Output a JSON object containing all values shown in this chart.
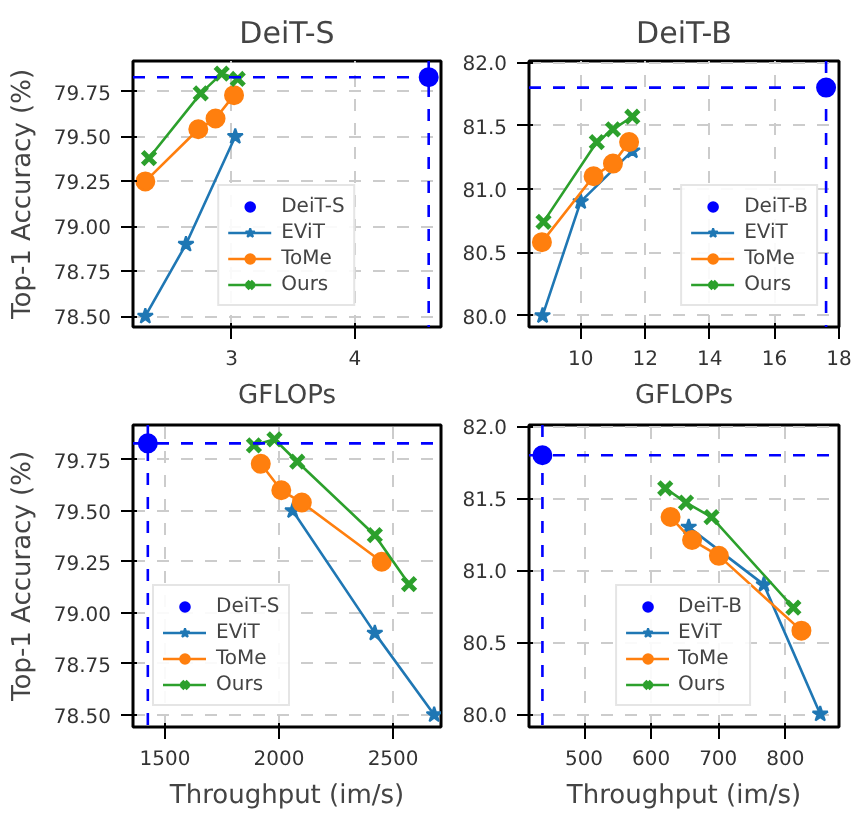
{
  "chart_data": [
    {
      "type": "line",
      "title": "DeiT-S",
      "xlabel": "GFLOPs",
      "ylabel": "Top-1 Accuracy (%)",
      "xlim": [
        2.2,
        4.7
      ],
      "ylim": [
        78.44,
        79.92
      ],
      "xticks": [
        3,
        4
      ],
      "yticks": [
        {
          "value": 78.5,
          "label": "78.50"
        },
        {
          "value": 78.75,
          "label": "78.75"
        },
        {
          "value": 79.0,
          "label": "79.00"
        },
        {
          "value": 79.25,
          "label": "79.25"
        },
        {
          "value": 79.5,
          "label": "79.50"
        },
        {
          "value": 79.75,
          "label": "79.75"
        }
      ],
      "grid": true,
      "legend": "bottom",
      "ref_lines": [
        {
          "axis": "x",
          "value": 4.6,
          "color": "#0000ff",
          "line_style": "dashed"
        },
        {
          "axis": "y",
          "value": 79.83,
          "color": "#0000ff",
          "line_style": "dashed"
        }
      ],
      "series": [
        {
          "name": "DeiT-S",
          "type": "scatter",
          "marker": "circle",
          "color": "#0000ff",
          "x": [
            4.6
          ],
          "values": [
            79.83
          ]
        },
        {
          "name": "EViT",
          "marker": "star",
          "color": "#1f77b4",
          "x": [
            2.3,
            2.63,
            3.03
          ],
          "values": [
            78.5,
            78.9,
            79.5
          ]
        },
        {
          "name": "ToMe",
          "marker": "circle",
          "color": "#ff7f0e",
          "x": [
            2.3,
            2.73,
            2.87,
            3.02
          ],
          "values": [
            79.25,
            79.54,
            79.6,
            79.73
          ]
        },
        {
          "name": "Ours",
          "marker": "cross",
          "color": "#2ca02c",
          "x": [
            2.33,
            2.75,
            2.92,
            3.05
          ],
          "values": [
            79.38,
            79.74,
            79.85,
            79.82
          ]
        }
      ]
    },
    {
      "type": "line",
      "title": "DeiT-B",
      "xlabel": "GFLOPs",
      "xlim": [
        8.4,
        18
      ],
      "ylim": [
        79.91,
        82.01
      ],
      "xticks": [
        10,
        12,
        14,
        16,
        18
      ],
      "yticks": [
        {
          "value": 80,
          "label": "80.0"
        },
        {
          "value": 80.5,
          "label": "80.5"
        },
        {
          "value": 81,
          "label": "81.0"
        },
        {
          "value": 81.5,
          "label": "81.5"
        },
        {
          "value": 82,
          "label": "82.0"
        }
      ],
      "grid": true,
      "legend": "bottom right",
      "ref_lines": [
        {
          "axis": "x",
          "value": 17.6,
          "color": "#0000ff",
          "line_style": "dashed"
        },
        {
          "axis": "y",
          "value": 81.8,
          "color": "#0000ff",
          "line_style": "dashed"
        }
      ],
      "series": [
        {
          "name": "DeiT-B",
          "type": "scatter",
          "marker": "circle",
          "color": "#0000ff",
          "x": [
            17.6
          ],
          "values": [
            81.8
          ]
        },
        {
          "name": "EViT",
          "marker": "star",
          "color": "#1f77b4",
          "x": [
            8.82,
            10.0,
            11.6
          ],
          "values": [
            80.0,
            80.9,
            81.3
          ]
        },
        {
          "name": "ToMe",
          "marker": "circle",
          "color": "#ff7f0e",
          "x": [
            8.8,
            10.4,
            11.0,
            11.5
          ],
          "values": [
            80.58,
            81.1,
            81.2,
            81.37
          ]
        },
        {
          "name": "Ours",
          "marker": "cross",
          "color": "#2ca02c",
          "x": [
            8.85,
            10.5,
            11.0,
            11.6
          ],
          "values": [
            80.74,
            81.37,
            81.47,
            81.57
          ]
        }
      ]
    },
    {
      "type": "line",
      "xlabel": "Throughput (im/s)",
      "ylabel": "Top-1 Accuracy (%)",
      "xlim": [
        1360,
        2710
      ],
      "ylim": [
        78.44,
        79.92
      ],
      "xticks": [
        1500,
        2000,
        2500
      ],
      "yticks": [
        {
          "value": 78.5,
          "label": "78.50"
        },
        {
          "value": 78.75,
          "label": "78.75"
        },
        {
          "value": 79.0,
          "label": "79.00"
        },
        {
          "value": 79.25,
          "label": "79.25"
        },
        {
          "value": 79.5,
          "label": "79.50"
        },
        {
          "value": 79.75,
          "label": "79.75"
        }
      ],
      "grid": true,
      "legend": "bottom left",
      "ref_lines": [
        {
          "axis": "x",
          "value": 1425,
          "color": "#0000ff",
          "line_style": "dashed"
        },
        {
          "axis": "y",
          "value": 79.83,
          "color": "#0000ff",
          "line_style": "dashed"
        }
      ],
      "series": [
        {
          "name": "DeiT-S",
          "type": "scatter",
          "marker": "circle",
          "color": "#0000ff",
          "x": [
            1425
          ],
          "values": [
            79.83
          ]
        },
        {
          "name": "EViT",
          "marker": "star",
          "color": "#1f77b4",
          "x": [
            2060,
            2420,
            2680
          ],
          "values": [
            79.5,
            78.9,
            78.5
          ]
        },
        {
          "name": "ToMe",
          "marker": "circle",
          "color": "#ff7f0e",
          "x": [
            1920,
            2010,
            2100,
            2450
          ],
          "values": [
            79.73,
            79.6,
            79.54,
            79.25
          ]
        },
        {
          "name": "Ours",
          "marker": "cross",
          "color": "#2ca02c",
          "x": [
            1890,
            1980,
            2080,
            2420,
            2570
          ],
          "values": [
            79.82,
            79.85,
            79.74,
            79.38,
            79.14
          ]
        }
      ]
    },
    {
      "type": "line",
      "xlabel": "Throughput (im/s)",
      "xlim": [
        418,
        880
      ],
      "ylim": [
        79.91,
        82.01
      ],
      "xticks": [
        500,
        600,
        700,
        800
      ],
      "yticks": [
        {
          "value": 80,
          "label": "80.0"
        },
        {
          "value": 80.5,
          "label": "80.5"
        },
        {
          "value": 81,
          "label": "81.0"
        },
        {
          "value": 81.5,
          "label": "81.5"
        },
        {
          "value": 82,
          "label": "82.0"
        }
      ],
      "grid": true,
      "legend": "bottom",
      "ref_lines": [
        {
          "axis": "x",
          "value": 438,
          "color": "#0000ff",
          "line_style": "dashed"
        },
        {
          "axis": "y",
          "value": 81.8,
          "color": "#0000ff",
          "line_style": "dashed"
        }
      ],
      "series": [
        {
          "name": "DeiT-B",
          "type": "scatter",
          "marker": "circle",
          "color": "#0000ff",
          "x": [
            438
          ],
          "values": [
            81.8
          ]
        },
        {
          "name": "EViT",
          "marker": "star",
          "color": "#1f77b4",
          "x": [
            656,
            768,
            852
          ],
          "values": [
            81.3,
            80.9,
            80.0
          ]
        },
        {
          "name": "ToMe",
          "marker": "circle",
          "color": "#ff7f0e",
          "x": [
            629,
            661,
            701,
            824
          ],
          "values": [
            81.37,
            81.21,
            81.1,
            80.58
          ]
        },
        {
          "name": "Ours",
          "marker": "cross",
          "color": "#2ca02c",
          "x": [
            621,
            652,
            690,
            812
          ],
          "values": [
            81.57,
            81.47,
            81.37,
            80.74
          ]
        }
      ]
    }
  ]
}
